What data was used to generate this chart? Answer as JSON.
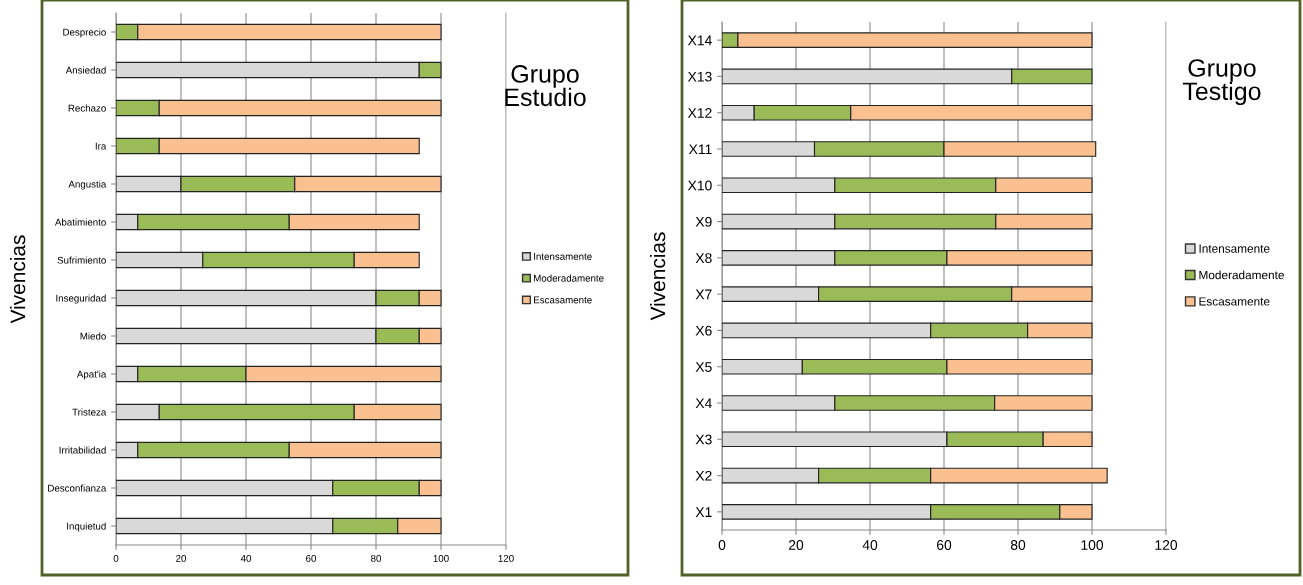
{
  "chart_data": [
    {
      "type": "bar",
      "orientation": "horizontal",
      "stacked": true,
      "title": "Grupo Estudio",
      "ylabel": "Vivencias",
      "categories": [
        "Desprecio",
        "Ansiedad",
        "Rechazo",
        "Ira",
        "Angustia",
        "Abatimiento",
        "Sufrimiento",
        "Inseguridad",
        "Miedo",
        "Apat'ia",
        "Tristeza",
        "Irritabilidad",
        "Desconfianza",
        "Inquietud"
      ],
      "series": [
        {
          "name": "Intensamente",
          "color": "#d9d9d9",
          "values": [
            0,
            93.3,
            0,
            0,
            20,
            6.7,
            26.7,
            80,
            80,
            6.7,
            13.3,
            6.7,
            66.7,
            66.7
          ]
        },
        {
          "name": "Moderadamente",
          "color": "#9bbb59",
          "values": [
            6.7,
            6.7,
            13.3,
            13.3,
            35,
            46.6,
            46.6,
            13.3,
            13.3,
            33.3,
            60,
            46.6,
            26.6,
            20
          ]
        },
        {
          "name": "Escasamente",
          "color": "#fac090",
          "values": [
            93.3,
            0,
            86.7,
            80,
            45,
            40,
            20,
            6.7,
            6.7,
            60,
            26.7,
            46.7,
            6.7,
            13.3
          ]
        }
      ],
      "xlim": [
        0,
        120
      ],
      "xticks": [
        0,
        20,
        40,
        60,
        80,
        100,
        120
      ],
      "grid": "x",
      "legend": "right"
    },
    {
      "type": "bar",
      "orientation": "horizontal",
      "stacked": true,
      "title": "Grupo Testigo",
      "ylabel": "Vivencias",
      "categories": [
        "X14",
        "X13",
        "X12",
        "X11",
        "X10",
        "X9",
        "X8",
        "X7",
        "X6",
        "X5",
        "X4",
        "X3",
        "X2",
        "X1"
      ],
      "series": [
        {
          "name": "Intensamente",
          "color": "#d9d9d9",
          "values": [
            0,
            78.3,
            8.7,
            25,
            30.5,
            30.5,
            30.5,
            26.1,
            56.4,
            21.7,
            30.5,
            60.8,
            26.1,
            56.4
          ]
        },
        {
          "name": "Moderadamente",
          "color": "#9bbb59",
          "values": [
            4.3,
            21.7,
            26.1,
            35,
            43.5,
            43.5,
            30.3,
            52.2,
            26.2,
            39.1,
            43.2,
            26,
            30.3,
            34.9
          ]
        },
        {
          "name": "Escasamente",
          "color": "#fac090",
          "values": [
            95.7,
            0,
            65.2,
            41,
            26,
            26,
            39.2,
            21.7,
            17.4,
            39.2,
            26.3,
            13.2,
            47.7,
            8.7
          ]
        }
      ],
      "xlim": [
        0,
        120
      ],
      "xticks": [
        0,
        20,
        40,
        60,
        80,
        100,
        120
      ],
      "grid": "x",
      "legend": "right"
    }
  ]
}
